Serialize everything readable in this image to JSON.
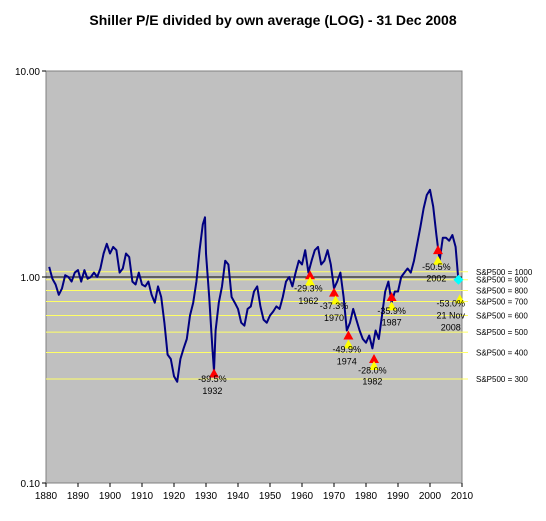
{
  "chart_data": {
    "type": "line",
    "title": "Shiller P/E divided by own average (LOG) - 31 Dec 2008",
    "xlabel": "",
    "ylabel": "",
    "y_scale": "log",
    "ylim": [
      0.1,
      10
    ],
    "xlim": [
      1880,
      2010
    ],
    "grid": false,
    "colors": {
      "plot_background": "#c0c0c0",
      "line": "#000080",
      "level_line": "#ffff66",
      "peak_marker": "#ff0000",
      "trough_marker": "#ffff00",
      "current_marker": "#00ffff"
    },
    "x_ticks": [
      "1880",
      "1890",
      "1900",
      "1910",
      "1920",
      "1930",
      "1940",
      "1950",
      "1960",
      "1970",
      "1980",
      "1990",
      "2000",
      "2010"
    ],
    "y_ticks": [
      "0.10",
      "1.00",
      "10.00"
    ],
    "series": [
      {
        "x": [
          1881,
          1882,
          1883,
          1884,
          1885,
          1886,
          1887,
          1888,
          1889,
          1890,
          1891,
          1892,
          1893,
          1894,
          1895,
          1896,
          1897,
          1898,
          1899,
          1900,
          1901,
          1902,
          1903,
          1904,
          1905,
          1906,
          1907,
          1908,
          1909,
          1910,
          1911,
          1912,
          1913,
          1914,
          1915,
          1916,
          1917,
          1918,
          1919,
          1920,
          1921,
          1922,
          1923,
          1924,
          1925,
          1926,
          1927,
          1928,
          1929,
          1929.7,
          1930,
          1931,
          1932,
          1932.5,
          1933,
          1934,
          1935,
          1936,
          1937,
          1938,
          1939,
          1940,
          1941,
          1942,
          1943,
          1944,
          1945,
          1946,
          1947,
          1948,
          1949,
          1950,
          1951,
          1952,
          1953,
          1954,
          1955,
          1956,
          1957,
          1958,
          1959,
          1960,
          1961,
          1962,
          1963,
          1964,
          1965,
          1966,
          1967,
          1968,
          1969,
          1970,
          1971,
          1972,
          1973,
          1974,
          1975,
          1976,
          1977,
          1978,
          1979,
          1980,
          1981,
          1982,
          1983,
          1984,
          1985,
          1986,
          1987,
          1988,
          1989,
          1990,
          1991,
          1992,
          1993,
          1994,
          1995,
          1996,
          1997,
          1998,
          1999,
          2000,
          2001,
          2002,
          2003,
          2004,
          2005,
          2006,
          2007,
          2008,
          2008.9
        ],
        "values": [
          1.12,
          0.98,
          0.92,
          0.82,
          0.88,
          1.02,
          1.0,
          0.95,
          1.05,
          1.08,
          0.95,
          1.08,
          0.98,
          1.0,
          1.05,
          1.0,
          1.1,
          1.3,
          1.45,
          1.3,
          1.4,
          1.35,
          1.05,
          1.1,
          1.3,
          1.25,
          0.95,
          0.92,
          1.05,
          0.92,
          0.9,
          0.95,
          0.82,
          0.75,
          0.9,
          0.8,
          0.6,
          0.42,
          0.4,
          0.33,
          0.31,
          0.4,
          0.45,
          0.5,
          0.65,
          0.75,
          0.95,
          1.35,
          1.8,
          1.95,
          1.3,
          0.8,
          0.45,
          0.35,
          0.55,
          0.75,
          0.9,
          1.2,
          1.15,
          0.8,
          0.75,
          0.7,
          0.6,
          0.58,
          0.7,
          0.72,
          0.85,
          0.9,
          0.72,
          0.62,
          0.6,
          0.65,
          0.68,
          0.72,
          0.7,
          0.8,
          0.95,
          1.0,
          0.9,
          1.05,
          1.2,
          1.15,
          1.35,
          1.05,
          1.2,
          1.35,
          1.4,
          1.15,
          1.2,
          1.35,
          1.15,
          0.88,
          0.95,
          1.05,
          0.8,
          0.55,
          0.6,
          0.7,
          0.62,
          0.55,
          0.5,
          0.48,
          0.52,
          0.45,
          0.55,
          0.5,
          0.65,
          0.85,
          0.95,
          0.75,
          0.85,
          0.85,
          1.0,
          1.05,
          1.1,
          1.05,
          1.2,
          1.45,
          1.75,
          2.15,
          2.5,
          2.65,
          2.2,
          1.6,
          1.2,
          1.55,
          1.55,
          1.5,
          1.6,
          1.4,
          0.95
        ]
      }
    ],
    "level_lines": [
      {
        "label": "S&P500 = 1000",
        "value": 1.06
      },
      {
        "label": "S&P500 = 900",
        "value": 0.97
      },
      {
        "label": "S&P500 = 800",
        "value": 0.86
      },
      {
        "label": "S&P500 = 700",
        "value": 0.76
      },
      {
        "label": "S&P500 = 600",
        "value": 0.65
      },
      {
        "label": "S&P500 = 500",
        "value": 0.54
      },
      {
        "label": "S&P500 = 400",
        "value": 0.43
      },
      {
        "label": "S&P500 = 300",
        "value": 0.32
      }
    ],
    "markers": [
      {
        "type": "peak",
        "x": 1932.5,
        "y": 0.34
      },
      {
        "type": "peak",
        "x": 1962.5,
        "y": 1.02
      },
      {
        "type": "trough",
        "x": 1962.5,
        "y": 0.95
      },
      {
        "type": "peak",
        "x": 1970,
        "y": 0.84
      },
      {
        "type": "trough",
        "x": 1970.5,
        "y": 0.77
      },
      {
        "type": "peak",
        "x": 1974.5,
        "y": 0.52
      },
      {
        "type": "trough",
        "x": 1974.5,
        "y": 0.47
      },
      {
        "type": "peak",
        "x": 1982.5,
        "y": 0.4
      },
      {
        "type": "trough",
        "x": 1982.5,
        "y": 0.37
      },
      {
        "type": "peak",
        "x": 1988,
        "y": 0.8
      },
      {
        "type": "trough",
        "x": 1988,
        "y": 0.72
      },
      {
        "type": "peak",
        "x": 2002.5,
        "y": 1.35
      },
      {
        "type": "trough",
        "x": 2002.5,
        "y": 1.2
      },
      {
        "type": "current",
        "x": 2008.9,
        "y": 0.97
      },
      {
        "type": "trough",
        "x": 2009.3,
        "y": 0.78
      }
    ],
    "annotations": [
      {
        "text": "-89.5%",
        "x": 1932,
        "y": 0.31
      },
      {
        "text": "1932",
        "x": 1932,
        "y": 0.27
      },
      {
        "text": "-29.3%",
        "x": 1962,
        "y": 0.85
      },
      {
        "text": "1962",
        "x": 1962,
        "y": 0.74
      },
      {
        "text": "-37.3%",
        "x": 1970,
        "y": 0.7
      },
      {
        "text": "1970",
        "x": 1970,
        "y": 0.61
      },
      {
        "text": "-49.9%",
        "x": 1974,
        "y": 0.43
      },
      {
        "text": "1974",
        "x": 1974,
        "y": 0.375
      },
      {
        "text": "-28.0%",
        "x": 1982,
        "y": 0.34
      },
      {
        "text": "1982",
        "x": 1982,
        "y": 0.3
      },
      {
        "text": "-35.9%",
        "x": 1988,
        "y": 0.66
      },
      {
        "text": "1987",
        "x": 1988,
        "y": 0.58
      },
      {
        "text": "-50.5%",
        "x": 2002,
        "y": 1.08
      },
      {
        "text": "2002",
        "x": 2002,
        "y": 0.95
      },
      {
        "text": "-53.0%",
        "x": 2006.5,
        "y": 0.72
      },
      {
        "text": "21 Nov",
        "x": 2006.5,
        "y": 0.63
      },
      {
        "text": "2008",
        "x": 2006.5,
        "y": 0.55
      }
    ]
  }
}
